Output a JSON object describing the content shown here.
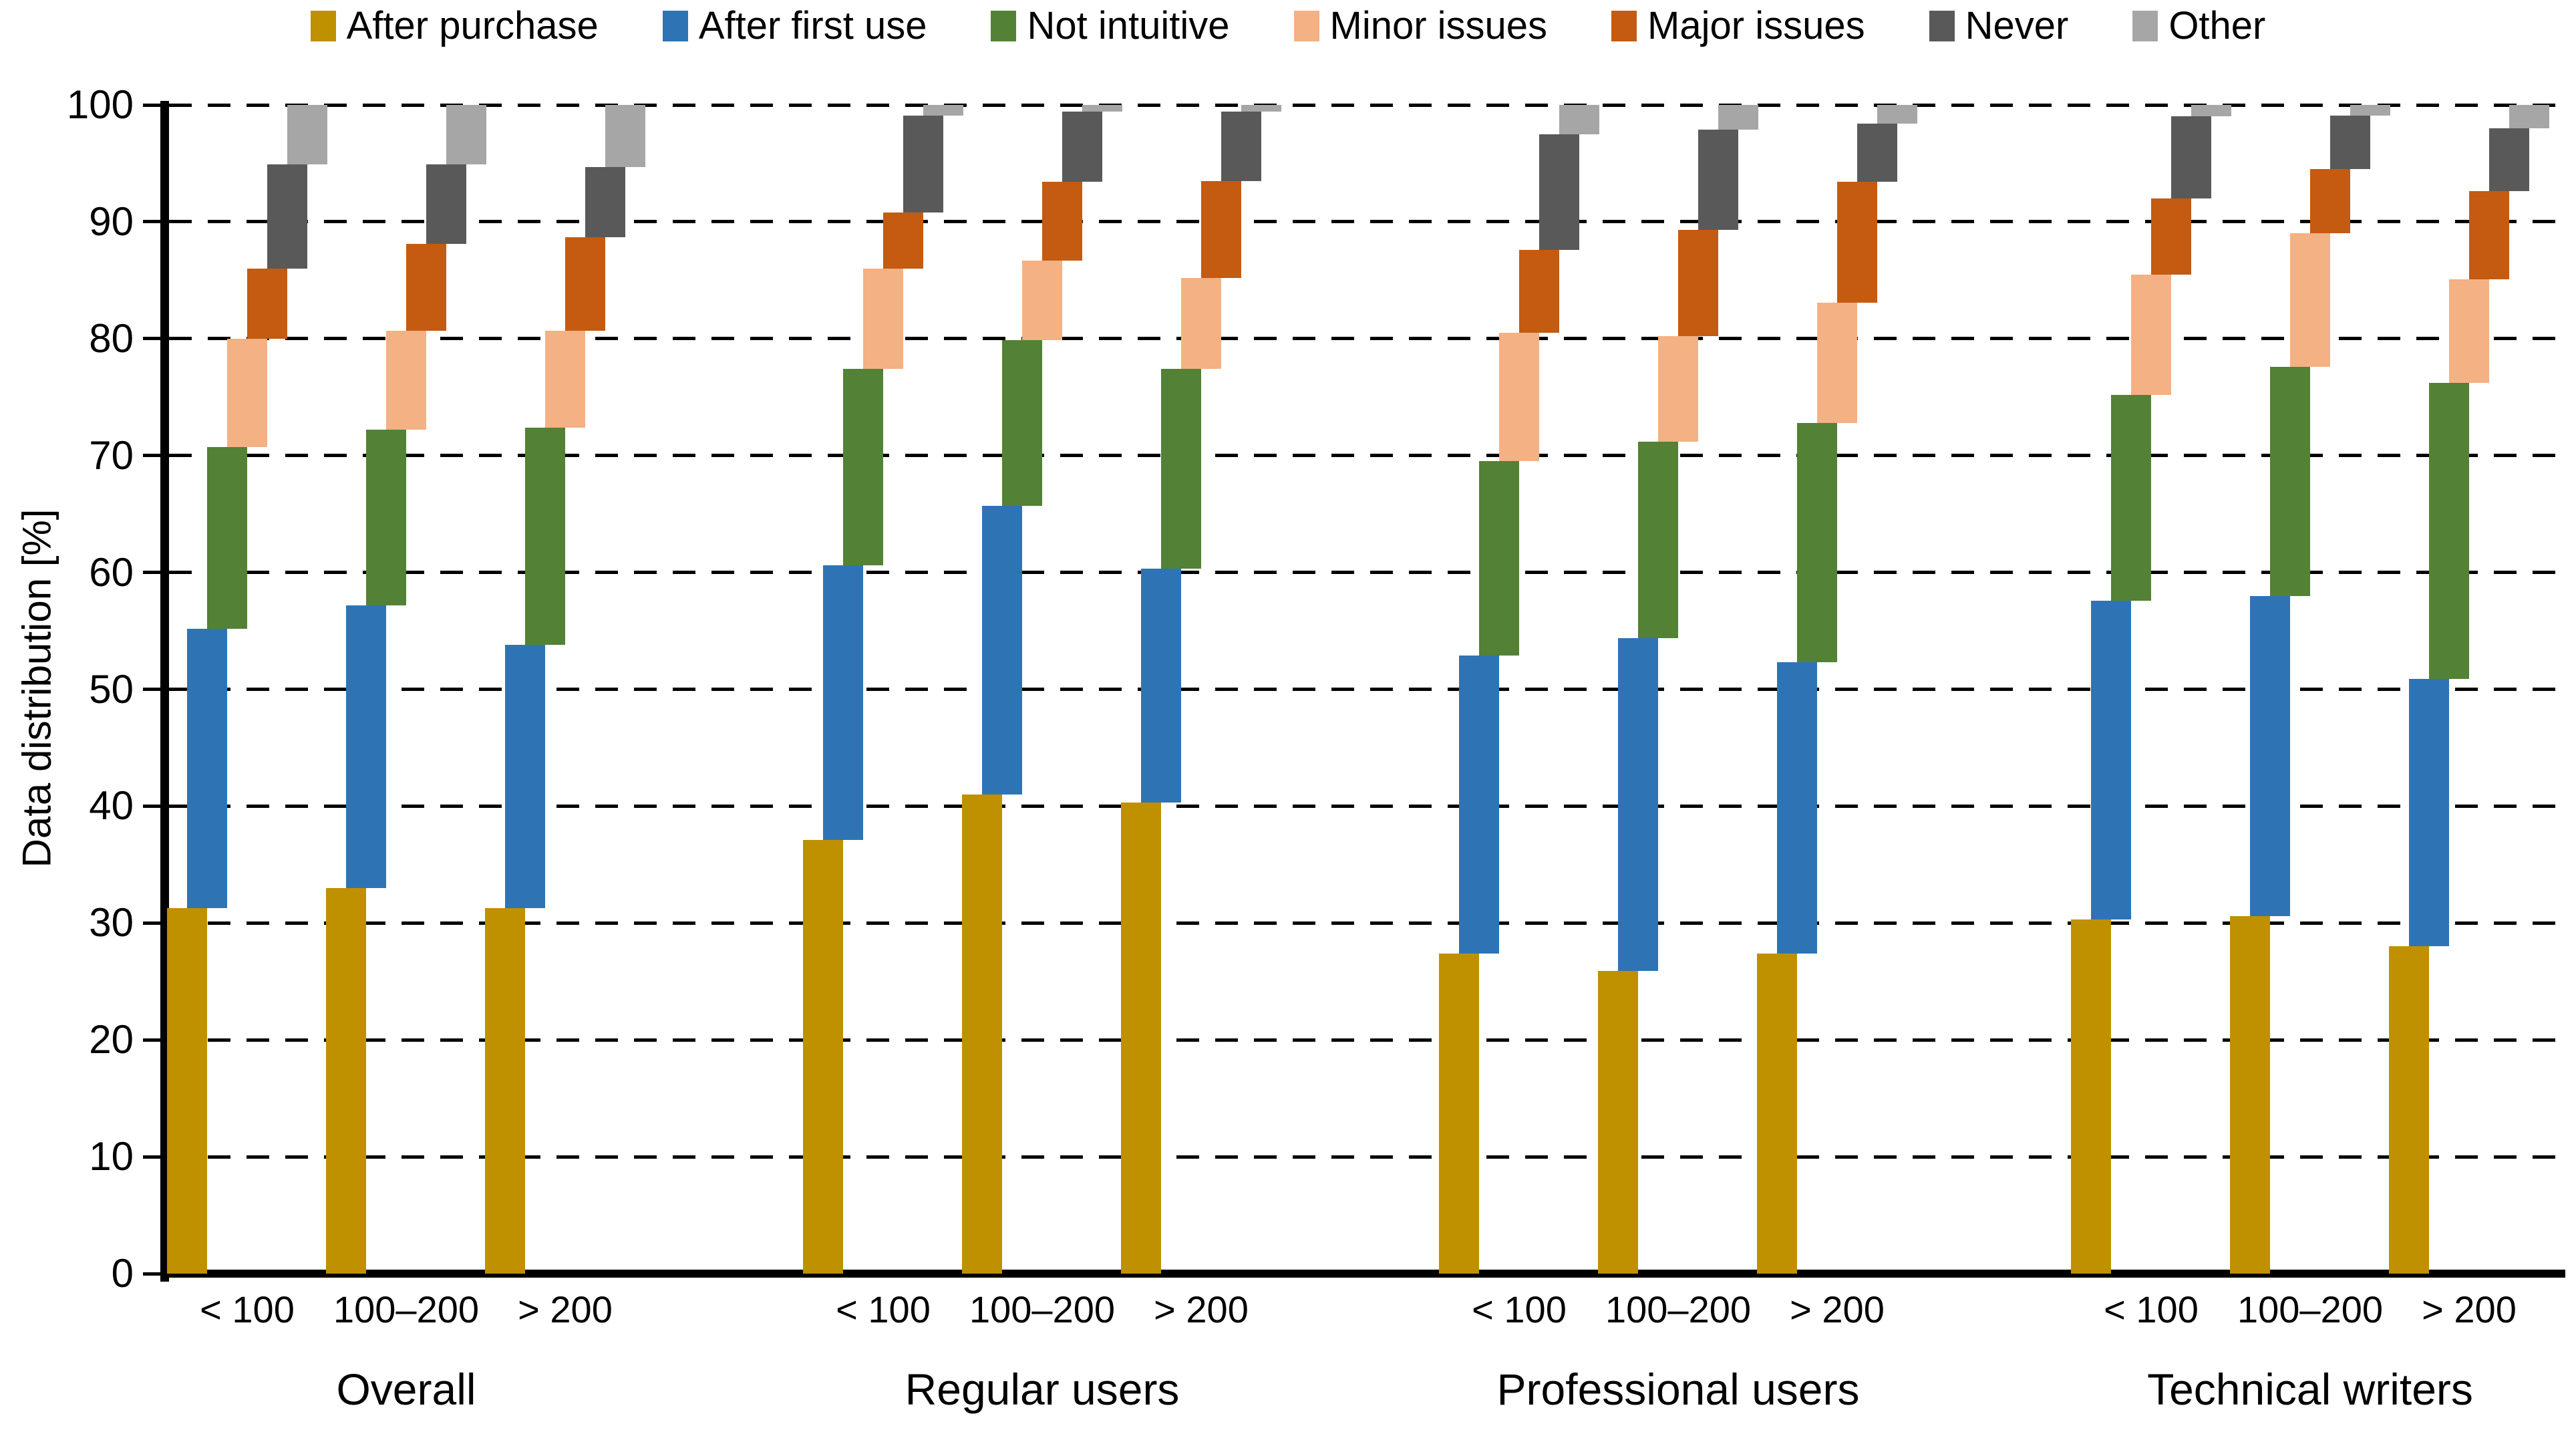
{
  "chart_data": {
    "type": "bar",
    "subtype": "stacked-cascade-columns",
    "title": "",
    "ylabel": "Data distribution [%]",
    "ylim": [
      0,
      100
    ],
    "yticks": [
      0,
      10,
      20,
      30,
      40,
      50,
      60,
      70,
      80,
      90,
      100
    ],
    "grid": "horizontal dashed black lines at every 10",
    "legend_position": "top",
    "units": "percent, each bar stacks to 100",
    "series": [
      {
        "name": "After purchase",
        "color": "#BF9000"
      },
      {
        "name": "After first use",
        "color": "#2E74B5"
      },
      {
        "name": "Not intuitive",
        "color": "#538135"
      },
      {
        "name": "Minor issues",
        "color": "#F4B183"
      },
      {
        "name": "Major issues",
        "color": "#C55A11"
      },
      {
        "name": "Never",
        "color": "#595959"
      },
      {
        "name": "Other",
        "color": "#A6A6A6"
      }
    ],
    "categories": [
      "< 100",
      "100–200",
      "> 200"
    ],
    "groups": [
      {
        "label": "Overall",
        "bars": [
          {
            "category": "< 100",
            "values": [
              31.3,
              23.9,
              15.5,
              9.3,
              6.0,
              8.9,
              5.1
            ]
          },
          {
            "category": "100–200",
            "values": [
              33.0,
              24.2,
              15.0,
              8.5,
              7.4,
              6.8,
              5.1
            ]
          },
          {
            "category": "> 200",
            "values": [
              31.3,
              22.5,
              18.6,
              8.3,
              8.0,
              6.0,
              5.3
            ]
          }
        ]
      },
      {
        "label": "Regular users",
        "bars": [
          {
            "category": "< 100",
            "values": [
              37.1,
              23.5,
              16.8,
              8.6,
              4.8,
              8.3,
              0.9
            ]
          },
          {
            "category": "100–200",
            "values": [
              41.0,
              24.7,
              14.2,
              6.8,
              6.7,
              6.0,
              0.6
            ]
          },
          {
            "category": "> 200",
            "values": [
              40.3,
              20.0,
              17.1,
              7.8,
              8.3,
              5.9,
              0.6
            ]
          }
        ]
      },
      {
        "label": "Professional users",
        "bars": [
          {
            "category": "< 100",
            "values": [
              27.4,
              25.5,
              16.6,
              11.0,
              7.1,
              9.9,
              2.5
            ]
          },
          {
            "category": "100–200",
            "values": [
              25.9,
              28.5,
              16.8,
              9.0,
              9.1,
              8.6,
              2.1
            ]
          },
          {
            "category": "> 200",
            "values": [
              27.4,
              24.9,
              20.5,
              10.3,
              10.3,
              5.0,
              1.6
            ]
          }
        ]
      },
      {
        "label": "Technical writers",
        "bars": [
          {
            "category": "< 100",
            "values": [
              30.3,
              27.3,
              17.6,
              10.3,
              6.5,
              7.0,
              1.0
            ]
          },
          {
            "category": "100–200",
            "values": [
              30.6,
              27.4,
              19.6,
              11.4,
              5.5,
              4.6,
              0.9
            ]
          },
          {
            "category": "> 200",
            "values": [
              28.0,
              22.9,
              25.3,
              8.9,
              7.5,
              5.4,
              2.0
            ]
          }
        ]
      }
    ]
  }
}
